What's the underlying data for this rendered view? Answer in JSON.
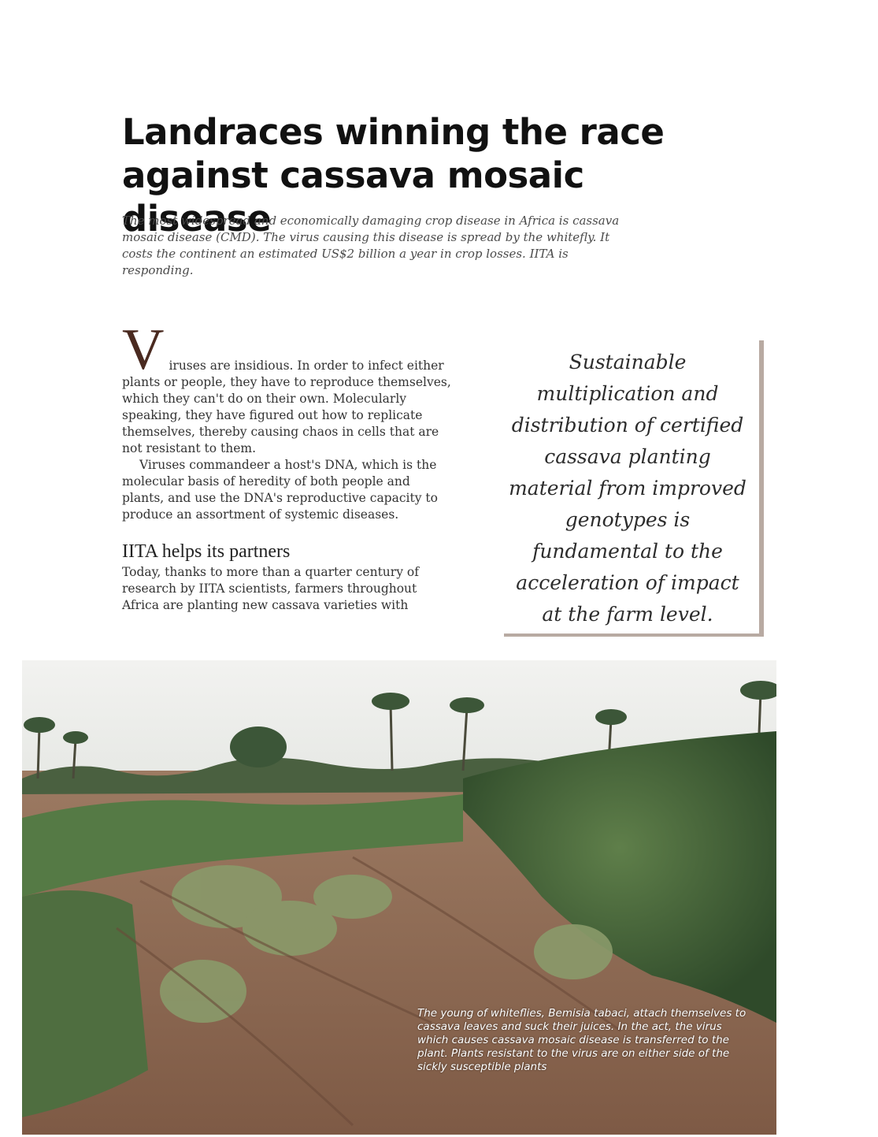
{
  "article": {
    "title": "Landraces winning the race against cassava mosaic disease",
    "dek": "The most widespread and economically damaging crop disease in Africa is cassava mosaic disease (CMD). The virus causing this disease is spread by the whitefly. It costs the continent an estimated US$2 billion a year in crop losses. IITA is responding.",
    "dropcap": "V",
    "paragraph1": "iruses are insidious. In order to infect either plants or people, they have to reproduce themselves, which they can't do on their own. Molecularly speaking, they have figured out how to replicate themselves, thereby causing chaos in cells that are not resistant to them.",
    "paragraph2": "Viruses commandeer a host's DNA, which is the molecular basis of heredity of both people and plants, and use the DNA's reproductive capacity to produce an assortment of systemic diseases.",
    "subhead": "IITA helps its partners",
    "paragraph3": "Today, thanks to more than a quarter century of research by IITA scientists, farmers throughout Africa are planting new cassava varieties with"
  },
  "pullquote": {
    "text": "Sustainable multiplication and distribution of certified cassava planting material from improved genotypes is fundamental to the acceleration of impact at the farm level."
  },
  "photo": {
    "caption": "The young of whiteflies, Bemisia tabaci, attach themselves to cassava leaves and suck their juices. In the act, the virus which causes cassava mosaic disease is transferred to the plant. Plants resistant to the virus are on either side of the sickly susceptible plants"
  },
  "colors": {
    "dropcap": "#4a2a20",
    "pullquote_border": "#b8aaa2"
  }
}
